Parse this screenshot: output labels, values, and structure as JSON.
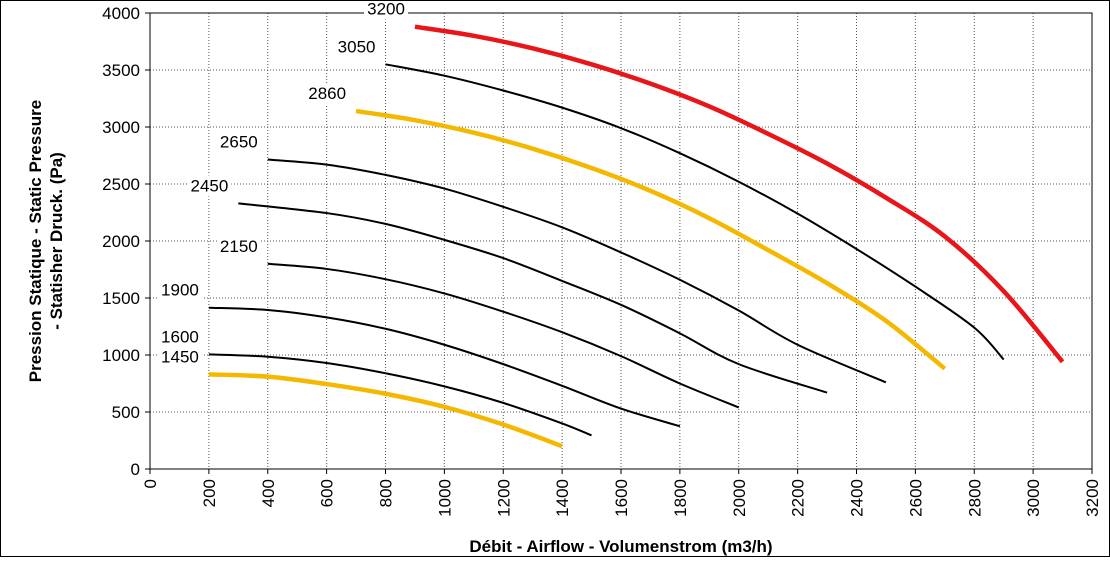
{
  "chart_data": {
    "type": "line",
    "title": "",
    "xlabel": "Débit - Airflow - Volumenstrom (m3/h)",
    "ylabel_line1": "Pression Statique - Static Pressure",
    "ylabel_line2": "- Statisher Druck. (Pa)",
    "xlim": [
      0,
      3200
    ],
    "ylim": [
      0,
      4000
    ],
    "x_ticks": [
      0,
      200,
      400,
      600,
      800,
      1000,
      1200,
      1400,
      1600,
      1800,
      2000,
      2200,
      2400,
      2600,
      2800,
      3000,
      3200
    ],
    "y_ticks": [
      0,
      500,
      1000,
      1500,
      2000,
      2500,
      3000,
      3500,
      4000
    ],
    "grid": "dotted",
    "legend": "none (curves labelled inline)",
    "series": [
      {
        "name": "1450",
        "color": "#F5B800",
        "points": [
          [
            200,
            830
          ],
          [
            400,
            810
          ],
          [
            600,
            745
          ],
          [
            800,
            660
          ],
          [
            1000,
            545
          ],
          [
            1200,
            390
          ],
          [
            1400,
            200
          ]
        ]
      },
      {
        "name": "1600",
        "color": "#000000",
        "points": [
          [
            200,
            1005
          ],
          [
            400,
            985
          ],
          [
            600,
            930
          ],
          [
            800,
            840
          ],
          [
            1000,
            725
          ],
          [
            1200,
            580
          ],
          [
            1400,
            400
          ],
          [
            1500,
            295
          ]
        ]
      },
      {
        "name": "1900",
        "color": "#000000",
        "points": [
          [
            200,
            1415
          ],
          [
            400,
            1395
          ],
          [
            600,
            1330
          ],
          [
            800,
            1230
          ],
          [
            1000,
            1090
          ],
          [
            1200,
            920
          ],
          [
            1400,
            730
          ],
          [
            1600,
            530
          ],
          [
            1800,
            375
          ]
        ]
      },
      {
        "name": "2150",
        "color": "#000000",
        "points": [
          [
            400,
            1800
          ],
          [
            600,
            1755
          ],
          [
            800,
            1665
          ],
          [
            1000,
            1540
          ],
          [
            1200,
            1380
          ],
          [
            1400,
            1200
          ],
          [
            1600,
            990
          ],
          [
            1800,
            750
          ],
          [
            2000,
            540
          ]
        ]
      },
      {
        "name": "2450",
        "color": "#000000",
        "points": [
          [
            300,
            2330
          ],
          [
            600,
            2245
          ],
          [
            800,
            2150
          ],
          [
            1000,
            2010
          ],
          [
            1200,
            1850
          ],
          [
            1400,
            1650
          ],
          [
            1600,
            1440
          ],
          [
            1800,
            1190
          ],
          [
            2000,
            920
          ],
          [
            2300,
            670
          ]
        ]
      },
      {
        "name": "2650",
        "color": "#000000",
        "points": [
          [
            400,
            2715
          ],
          [
            600,
            2670
          ],
          [
            800,
            2580
          ],
          [
            1000,
            2460
          ],
          [
            1200,
            2300
          ],
          [
            1400,
            2120
          ],
          [
            1600,
            1900
          ],
          [
            1800,
            1660
          ],
          [
            2000,
            1390
          ],
          [
            2200,
            1090
          ],
          [
            2500,
            760
          ]
        ]
      },
      {
        "name": "2860",
        "color": "#F5B800",
        "points": [
          [
            700,
            3140
          ],
          [
            900,
            3060
          ],
          [
            1100,
            2950
          ],
          [
            1300,
            2810
          ],
          [
            1500,
            2640
          ],
          [
            1700,
            2440
          ],
          [
            1900,
            2200
          ],
          [
            2100,
            1920
          ],
          [
            2300,
            1630
          ],
          [
            2500,
            1300
          ],
          [
            2700,
            880
          ]
        ]
      },
      {
        "name": "3050",
        "color": "#000000",
        "points": [
          [
            800,
            3550
          ],
          [
            1000,
            3450
          ],
          [
            1200,
            3320
          ],
          [
            1400,
            3170
          ],
          [
            1600,
            2990
          ],
          [
            1800,
            2770
          ],
          [
            2000,
            2520
          ],
          [
            2200,
            2240
          ],
          [
            2400,
            1930
          ],
          [
            2600,
            1600
          ],
          [
            2800,
            1240
          ],
          [
            2900,
            960
          ]
        ]
      },
      {
        "name": "3200",
        "color": "#E8161A",
        "points": [
          [
            900,
            3880
          ],
          [
            1100,
            3800
          ],
          [
            1300,
            3690
          ],
          [
            1500,
            3550
          ],
          [
            1700,
            3380
          ],
          [
            1900,
            3180
          ],
          [
            2100,
            2940
          ],
          [
            2300,
            2680
          ],
          [
            2500,
            2380
          ],
          [
            2700,
            2040
          ],
          [
            2900,
            1560
          ],
          [
            3100,
            940
          ]
        ]
      }
    ]
  }
}
